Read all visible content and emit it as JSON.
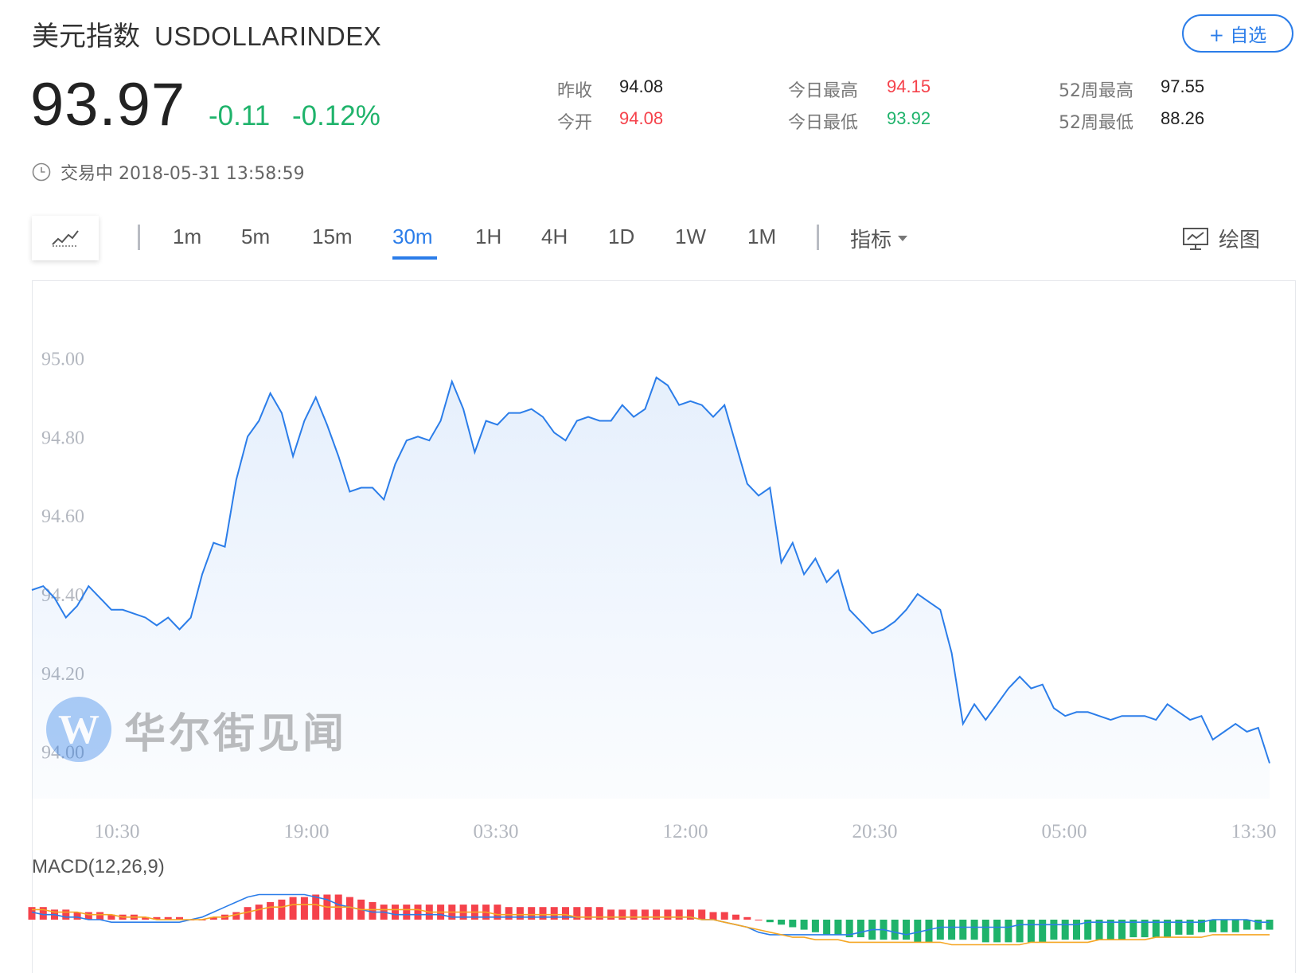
{
  "header": {
    "title_cn": "美元指数",
    "title_en": "USDOLLARINDEX",
    "add_watchlist_label": "+ 自选"
  },
  "quote": {
    "price": "93.97",
    "change": "-0.11",
    "change_pct": "-0.12%",
    "status": "交易中 2018-05-31 13:58:59"
  },
  "stats": [
    {
      "label": "昨收",
      "value": "94.08",
      "color": "#222222"
    },
    {
      "label": "今开",
      "value": "94.08",
      "color": "#f5424b"
    },
    {
      "label": "今日最高",
      "value": "94.15",
      "color": "#f5424b"
    },
    {
      "label": "今日最低",
      "value": "93.92",
      "color": "#1fb36b"
    },
    {
      "label": "52周最高",
      "value": "97.55",
      "color": "#222222"
    },
    {
      "label": "52周最低",
      "value": "88.26",
      "color": "#222222"
    }
  ],
  "toolbar": {
    "chart_type_icon": "line-chart-icon",
    "periods": [
      "1m",
      "5m",
      "15m",
      "30m",
      "1H",
      "4H",
      "1D",
      "1W",
      "1M"
    ],
    "active_period": "30m",
    "indicator_label": "指标",
    "draw_label": "绘图"
  },
  "watermark": {
    "logo": "W",
    "text": "华尔街见闻"
  },
  "colors": {
    "accent": "#2b7de9",
    "up": "#f5424b",
    "down": "#1fb36b",
    "line": "#2b7de9",
    "signal": "#f5a623"
  },
  "chart_data": [
    {
      "type": "area",
      "ylim": [
        93.88,
        95.1
      ],
      "yticks": [
        "95.00",
        "94.80",
        "94.60",
        "94.40",
        "94.20",
        "94.00"
      ],
      "x_tick_labels": [
        "10:30",
        "19:00",
        "03:30",
        "12:00",
        "20:30",
        "05:00",
        "13:30"
      ],
      "values": [
        94.41,
        94.42,
        94.39,
        94.34,
        94.37,
        94.42,
        94.39,
        94.36,
        94.36,
        94.35,
        94.34,
        94.32,
        94.34,
        94.31,
        94.34,
        94.45,
        94.53,
        94.52,
        94.69,
        94.8,
        94.84,
        94.91,
        94.86,
        94.75,
        94.84,
        94.9,
        94.83,
        94.75,
        94.66,
        94.67,
        94.67,
        94.64,
        94.73,
        94.79,
        94.8,
        94.79,
        94.84,
        94.94,
        94.87,
        94.76,
        94.84,
        94.83,
        94.86,
        94.86,
        94.87,
        94.85,
        94.81,
        94.79,
        94.84,
        94.85,
        94.84,
        94.84,
        94.88,
        94.85,
        94.87,
        94.95,
        94.93,
        94.88,
        94.89,
        94.88,
        94.85,
        94.88,
        94.78,
        94.68,
        94.65,
        94.67,
        94.48,
        94.53,
        94.45,
        94.49,
        94.43,
        94.46,
        94.36,
        94.33,
        94.3,
        94.31,
        94.33,
        94.36,
        94.4,
        94.38,
        94.36,
        94.25,
        94.07,
        94.12,
        94.08,
        94.12,
        94.16,
        94.19,
        94.16,
        94.17,
        94.11,
        94.09,
        94.1,
        94.1,
        94.09,
        94.08,
        94.09,
        94.09,
        94.09,
        94.08,
        94.12,
        94.1,
        94.08,
        94.09,
        94.03,
        94.05,
        94.07,
        94.05,
        94.06,
        93.97
      ]
    },
    {
      "type": "bar",
      "title": "MACD(12,26,9)",
      "ylim": [
        -0.13,
        0.13
      ],
      "histogram": [
        0.05,
        0.05,
        0.04,
        0.04,
        0.03,
        0.03,
        0.03,
        0.02,
        0.02,
        0.02,
        0.01,
        0.01,
        0.01,
        0.01,
        0.0,
        0.0,
        0.01,
        0.02,
        0.03,
        0.05,
        0.06,
        0.07,
        0.08,
        0.09,
        0.09,
        0.1,
        0.1,
        0.1,
        0.09,
        0.08,
        0.07,
        0.06,
        0.06,
        0.06,
        0.06,
        0.06,
        0.06,
        0.06,
        0.06,
        0.06,
        0.06,
        0.06,
        0.05,
        0.05,
        0.05,
        0.05,
        0.05,
        0.05,
        0.05,
        0.05,
        0.05,
        0.04,
        0.04,
        0.04,
        0.04,
        0.04,
        0.04,
        0.04,
        0.04,
        0.04,
        0.03,
        0.03,
        0.02,
        0.01,
        0.0,
        -0.01,
        -0.02,
        -0.03,
        -0.04,
        -0.05,
        -0.06,
        -0.06,
        -0.07,
        -0.07,
        -0.08,
        -0.08,
        -0.08,
        -0.08,
        -0.09,
        -0.09,
        -0.08,
        -0.08,
        -0.08,
        -0.08,
        -0.09,
        -0.09,
        -0.09,
        -0.09,
        -0.09,
        -0.09,
        -0.08,
        -0.08,
        -0.08,
        -0.08,
        -0.08,
        -0.08,
        -0.08,
        -0.07,
        -0.07,
        -0.07,
        -0.07,
        -0.06,
        -0.06,
        -0.05,
        -0.05,
        -0.05,
        -0.05,
        -0.04,
        -0.04,
        -0.04
      ],
      "macd_line": [
        0.03,
        0.02,
        0.02,
        0.01,
        0.01,
        0.0,
        0.0,
        -0.01,
        -0.01,
        -0.01,
        -0.01,
        -0.01,
        -0.01,
        -0.01,
        0.0,
        0.01,
        0.03,
        0.05,
        0.07,
        0.09,
        0.1,
        0.1,
        0.1,
        0.1,
        0.1,
        0.09,
        0.08,
        0.06,
        0.05,
        0.04,
        0.03,
        0.03,
        0.02,
        0.02,
        0.02,
        0.02,
        0.02,
        0.01,
        0.01,
        0.01,
        0.01,
        0.01,
        0.01,
        0.01,
        0.01,
        0.01,
        0.01,
        0.01,
        0.01,
        0.01,
        0.01,
        0.01,
        0.01,
        0.01,
        0.01,
        0.01,
        0.01,
        0.01,
        0.01,
        0.0,
        0.0,
        -0.01,
        -0.02,
        -0.03,
        -0.05,
        -0.06,
        -0.06,
        -0.06,
        -0.06,
        -0.06,
        -0.06,
        -0.06,
        -0.06,
        -0.05,
        -0.04,
        -0.04,
        -0.05,
        -0.06,
        -0.05,
        -0.04,
        -0.03,
        -0.03,
        -0.03,
        -0.03,
        -0.03,
        -0.03,
        -0.03,
        -0.02,
        -0.02,
        -0.02,
        -0.02,
        -0.02,
        -0.02,
        -0.01,
        -0.01,
        -0.01,
        -0.01,
        -0.01,
        -0.01,
        -0.01,
        -0.01,
        -0.01,
        -0.01,
        -0.01,
        0.0,
        0.0,
        0.0,
        0.0,
        -0.01,
        -0.01
      ],
      "signal_line": [
        0.04,
        0.04,
        0.03,
        0.03,
        0.03,
        0.02,
        0.02,
        0.02,
        0.01,
        0.01,
        0.01,
        0.0,
        0.0,
        0.0,
        0.0,
        0.0,
        0.01,
        0.01,
        0.02,
        0.03,
        0.04,
        0.05,
        0.05,
        0.06,
        0.06,
        0.06,
        0.05,
        0.05,
        0.05,
        0.04,
        0.04,
        0.04,
        0.04,
        0.04,
        0.04,
        0.03,
        0.03,
        0.03,
        0.03,
        0.03,
        0.03,
        0.02,
        0.02,
        0.02,
        0.02,
        0.02,
        0.02,
        0.02,
        0.01,
        0.01,
        0.01,
        0.01,
        0.01,
        0.01,
        0.01,
        0.01,
        0.01,
        0.01,
        0.01,
        0.0,
        0.0,
        -0.01,
        -0.02,
        -0.03,
        -0.04,
        -0.05,
        -0.06,
        -0.07,
        -0.07,
        -0.08,
        -0.08,
        -0.08,
        -0.09,
        -0.09,
        -0.09,
        -0.09,
        -0.09,
        -0.09,
        -0.09,
        -0.09,
        -0.09,
        -0.1,
        -0.1,
        -0.1,
        -0.1,
        -0.1,
        -0.1,
        -0.1,
        -0.09,
        -0.09,
        -0.09,
        -0.09,
        -0.09,
        -0.09,
        -0.08,
        -0.08,
        -0.08,
        -0.08,
        -0.08,
        -0.07,
        -0.07,
        -0.07,
        -0.07,
        -0.07,
        -0.06,
        -0.06,
        -0.06,
        -0.06,
        -0.06,
        -0.06
      ]
    }
  ]
}
